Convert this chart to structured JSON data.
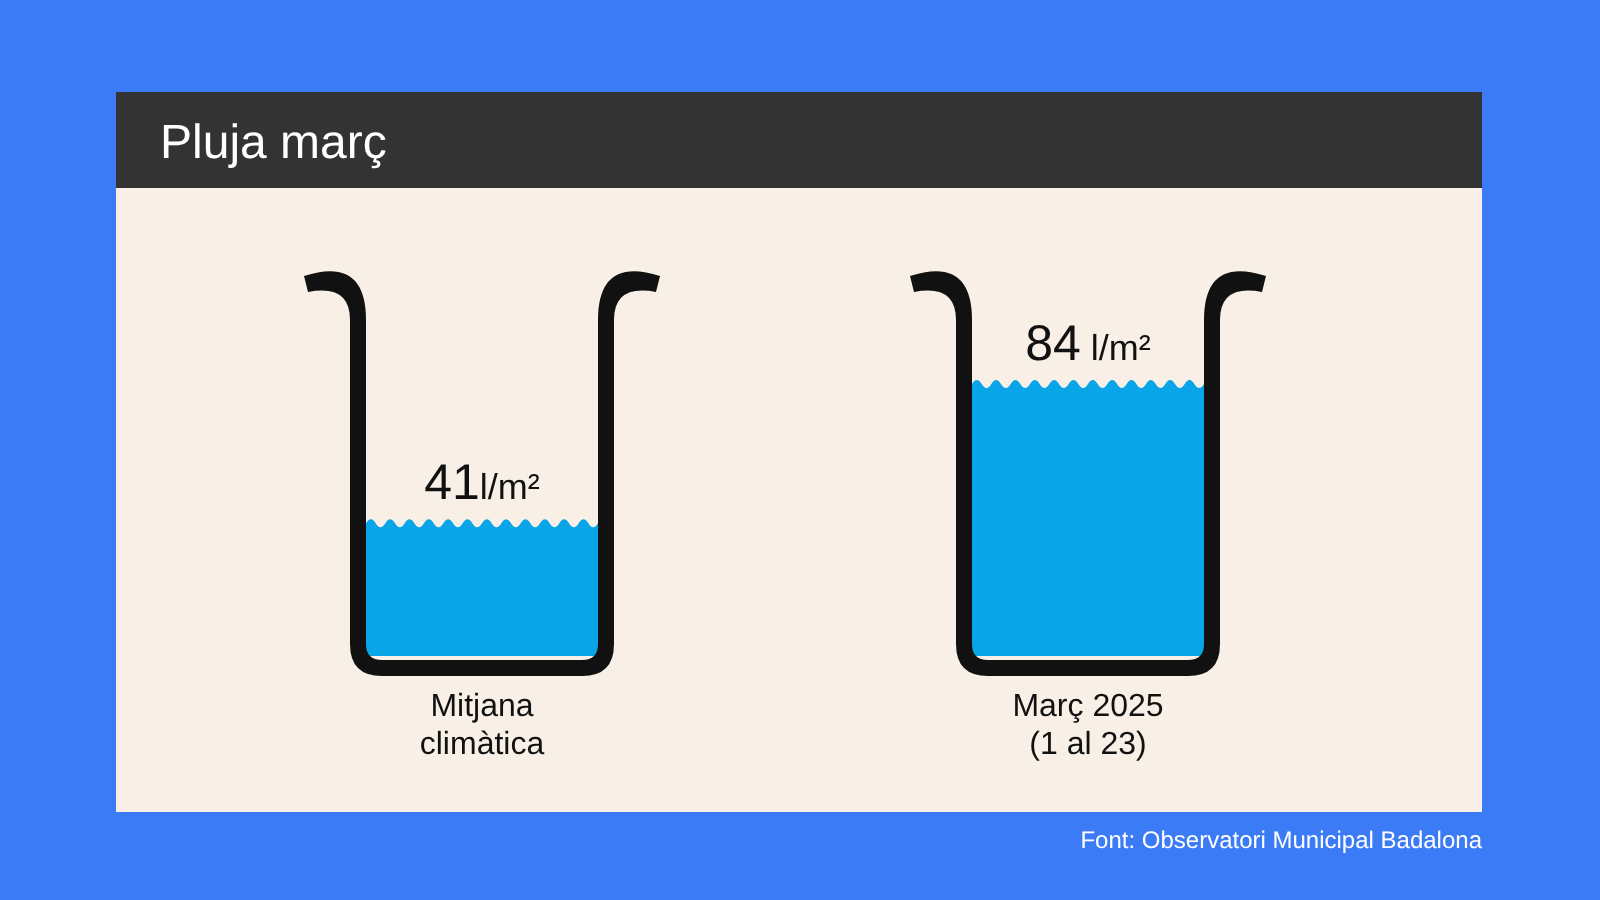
{
  "chart_data": {
    "type": "bar",
    "title": "Pluja març",
    "categories": [
      "Mitjana\nclimàtica",
      "Març 2025\n(1 al 23)"
    ],
    "values": [
      41,
      84
    ],
    "value_labels": [
      "41l/m²",
      "84 l/m²"
    ],
    "color": "#0aa5e8",
    "annotations": [
      "Font: Observatori Municipal Badalona"
    ]
  }
}
